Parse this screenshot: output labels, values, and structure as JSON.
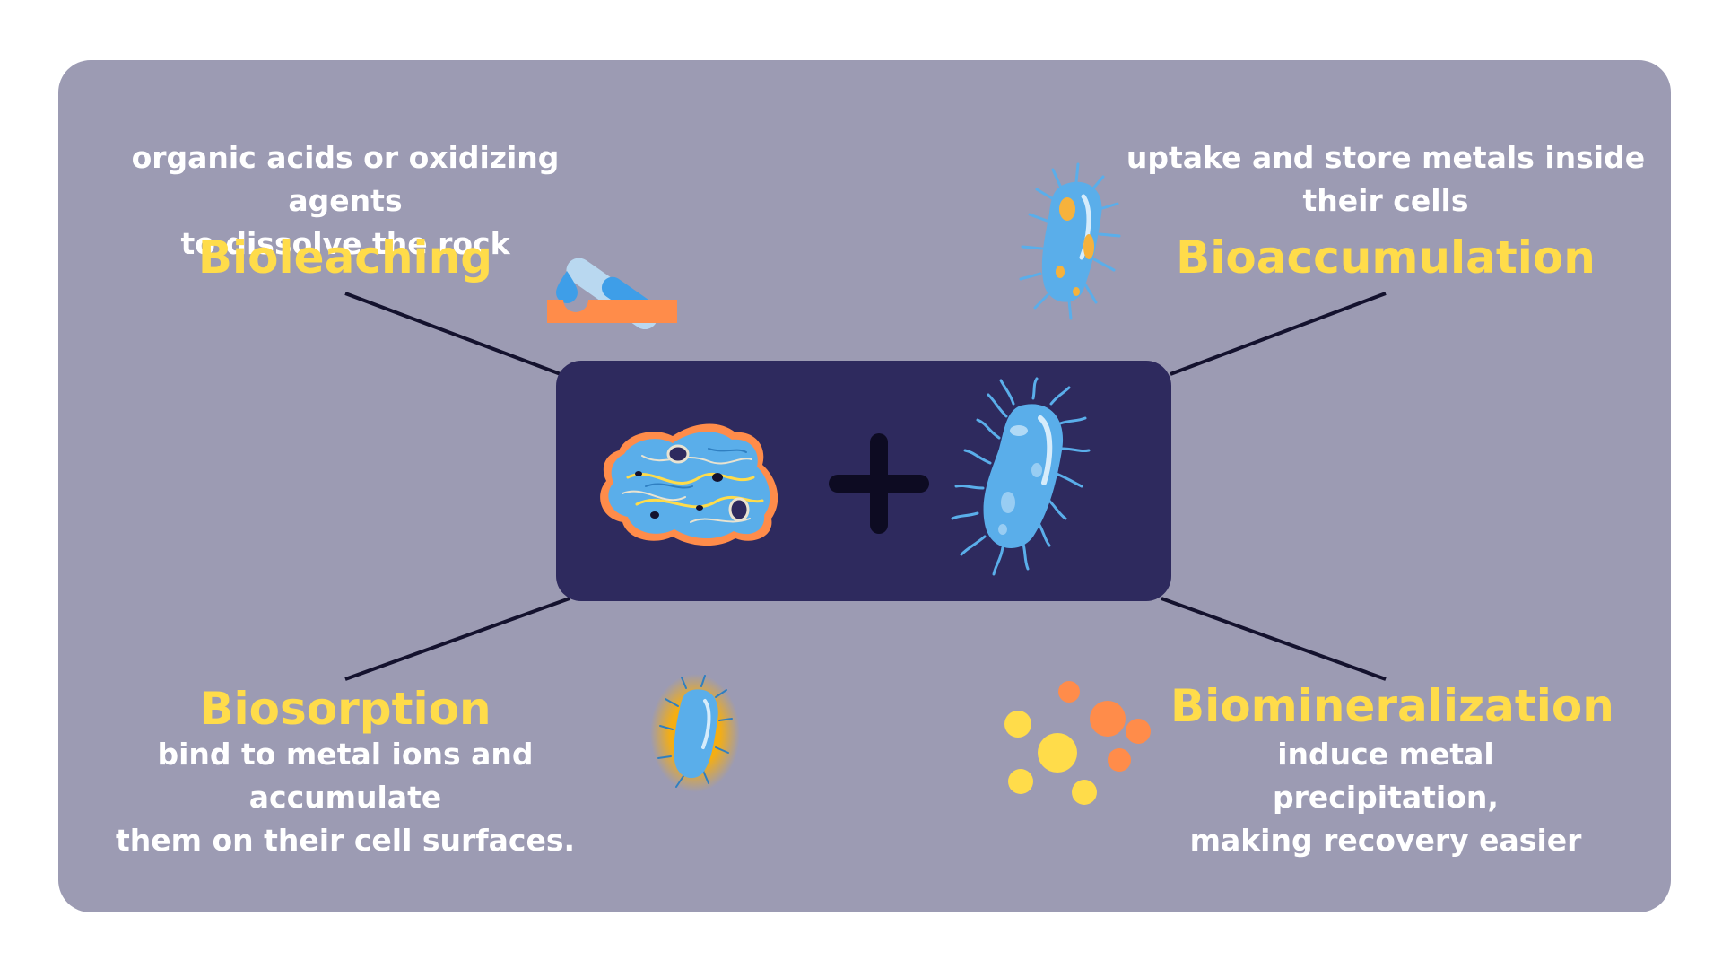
{
  "nodes": {
    "bioleaching": {
      "title": "Bioleaching",
      "description_line1": "organic acids or oxidizing agents",
      "description_line2": "to dissolve the rock"
    },
    "bioaccumulation": {
      "title": "Bioaccumulation",
      "description_line1": "uptake and store metals inside",
      "description_line2": "their cells"
    },
    "biosorption": {
      "title": "Biosorption",
      "description_line1": "bind to metal ions and accumulate",
      "description_line2": "them on their cell surfaces."
    },
    "biomineralization": {
      "title": "Biomineralization",
      "description_line1": "induce metal precipitation,",
      "description_line2": "making recovery easier"
    }
  },
  "center": {
    "left_icon": "ore-rock-icon",
    "operator_icon": "plus-icon",
    "right_icon": "bacterium-icon"
  },
  "icons": {
    "bioleaching": "test-tube-dropper-icon",
    "bioaccumulation": "bacterium-with-inclusions-icon",
    "biosorption": "bacterium-glowing-icon",
    "biomineralization": "precipitate-particles-icon"
  },
  "colors": {
    "panel": "#9c9bb3",
    "center_box": "#2e2a5e",
    "title": "#ffdc4a",
    "text": "#ffffff",
    "bacteria": "#5aaeea",
    "accent_orange": "#ff8c4a",
    "accent_yellow": "#ffdc4a"
  }
}
